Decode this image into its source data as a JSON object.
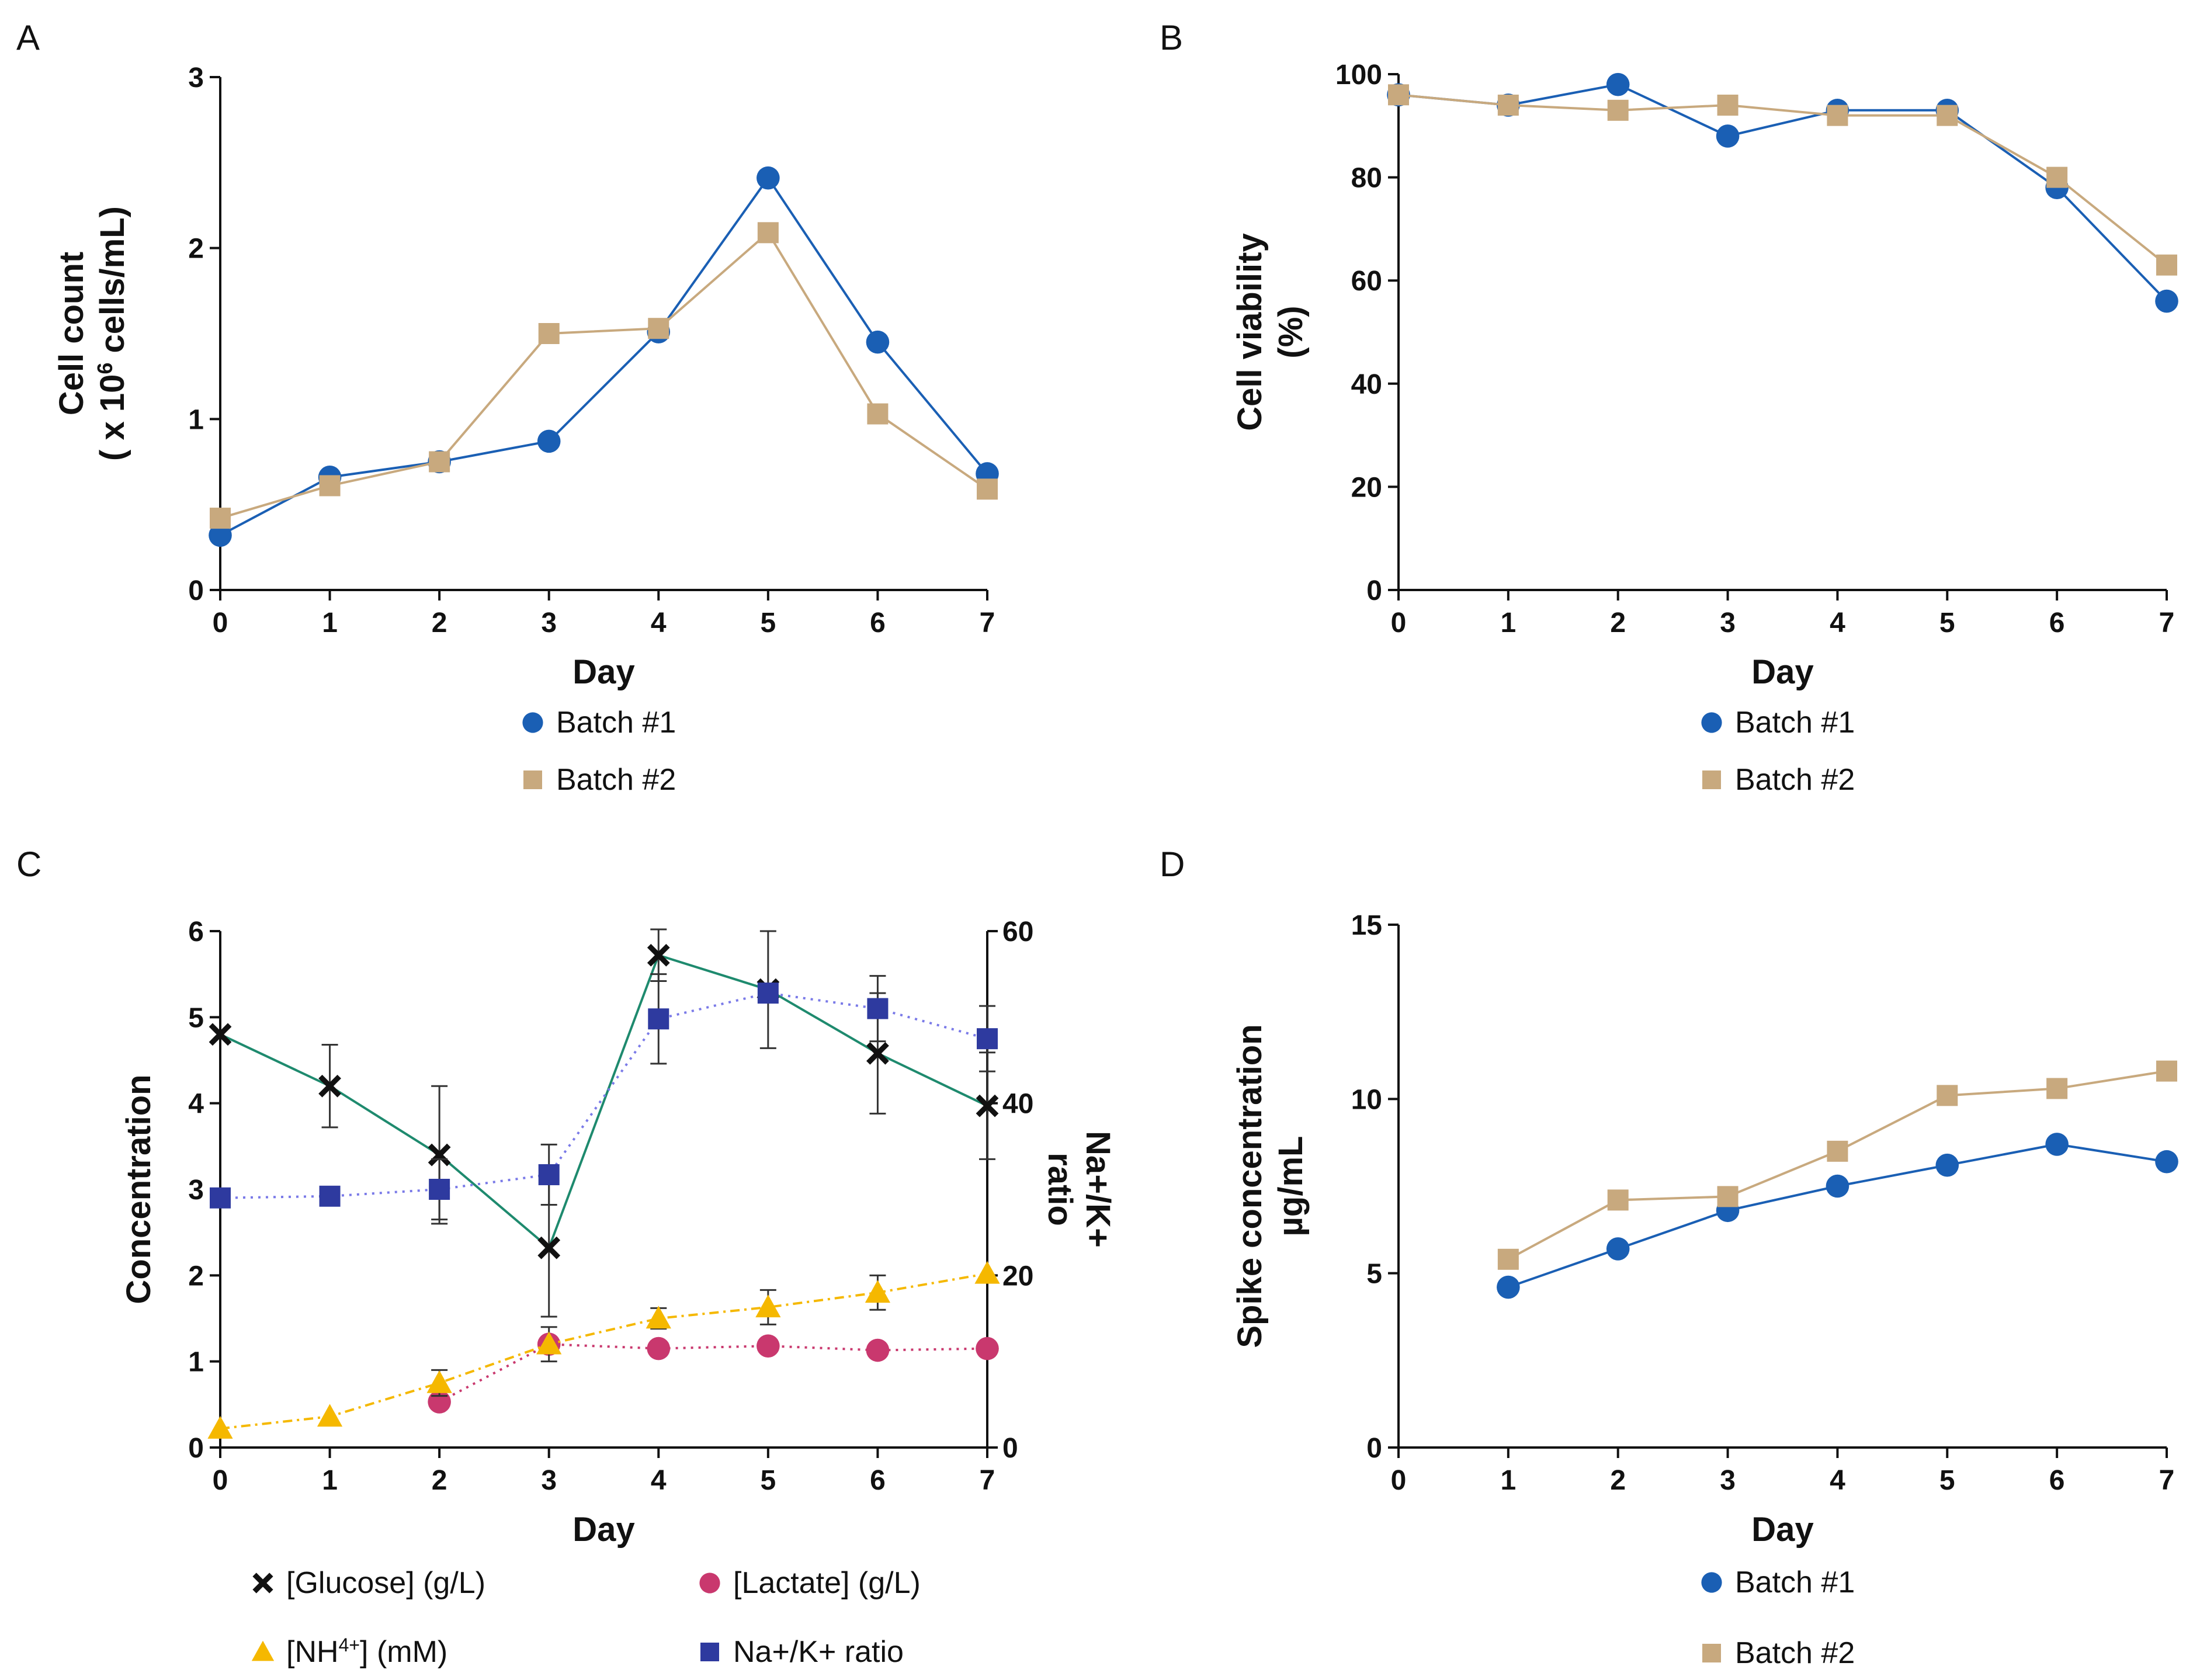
{
  "chart_data": [
    {
      "panel": "A",
      "type": "line",
      "xlabel": "Day",
      "ylabel_line1": "Cell count",
      "ylabel_line2_pre": "( x 10",
      "ylabel_line2_sup": "6",
      "ylabel_line2_post": " cells/mL)",
      "xlim": [
        0,
        7
      ],
      "ylim": [
        0,
        3
      ],
      "xticks": [
        0,
        1,
        2,
        3,
        4,
        5,
        6,
        7
      ],
      "yticks": [
        0,
        1,
        2,
        3
      ],
      "series": [
        {
          "name": "Batch #1",
          "marker": "circle",
          "color": "#1a5fb4",
          "x": [
            0,
            1,
            2,
            3,
            4,
            5,
            6,
            7
          ],
          "values": [
            0.32,
            0.66,
            0.75,
            0.87,
            1.51,
            2.41,
            1.45,
            0.68
          ]
        },
        {
          "name": "Batch #2",
          "marker": "square",
          "color": "#c8a97e",
          "x": [
            0,
            1,
            2,
            3,
            4,
            5,
            6,
            7
          ],
          "values": [
            0.42,
            0.61,
            0.75,
            1.5,
            1.53,
            2.09,
            1.03,
            0.59
          ]
        }
      ],
      "legend": [
        {
          "label": "Batch #1",
          "marker": "circle",
          "color": "#1a5fb4"
        },
        {
          "label": "Batch #2",
          "marker": "square",
          "color": "#c8a97e"
        }
      ]
    },
    {
      "panel": "B",
      "type": "line",
      "xlabel": "Day",
      "ylabel_line1": "Cell viability",
      "ylabel_line2": "(%)",
      "xlim": [
        0,
        7
      ],
      "ylim": [
        0,
        100
      ],
      "xticks": [
        0,
        1,
        2,
        3,
        4,
        5,
        6,
        7
      ],
      "yticks": [
        0,
        20,
        40,
        60,
        80,
        100
      ],
      "series": [
        {
          "name": "Batch #1",
          "marker": "circle",
          "color": "#1a5fb4",
          "x": [
            0,
            1,
            2,
            3,
            4,
            5,
            6,
            7
          ],
          "values": [
            96,
            94,
            98,
            88,
            93,
            93,
            78,
            56
          ]
        },
        {
          "name": "Batch #2",
          "marker": "square",
          "color": "#c8a97e",
          "x": [
            0,
            1,
            2,
            3,
            4,
            5,
            6,
            7
          ],
          "values": [
            96,
            94,
            93,
            94,
            92,
            92,
            80,
            63
          ]
        }
      ],
      "legend": [
        {
          "label": "Batch #1",
          "marker": "circle",
          "color": "#1a5fb4"
        },
        {
          "label": "Batch #2",
          "marker": "square",
          "color": "#c8a97e"
        }
      ]
    },
    {
      "panel": "C",
      "type": "line",
      "xlabel": "Day",
      "ylabel": "Concentration",
      "ylabel_right_line1": "Na+/K+",
      "ylabel_right_line2": "ratio",
      "xlim": [
        0,
        7
      ],
      "ylim": [
        0,
        6
      ],
      "ylim_right": [
        0,
        60
      ],
      "xticks": [
        0,
        1,
        2,
        3,
        4,
        5,
        6,
        7
      ],
      "yticks": [
        0,
        1,
        2,
        3,
        4,
        5,
        6
      ],
      "yticks_right": [
        0,
        20,
        40,
        60
      ],
      "series": [
        {
          "name": "[Glucose] (g/L)",
          "marker": "x",
          "color": "#111111",
          "line_color": "#1e8a6e",
          "dash": "solid",
          "axis": "left",
          "x": [
            0,
            1,
            2,
            3,
            4,
            5,
            6,
            7
          ],
          "values": [
            4.8,
            4.2,
            3.4,
            2.32,
            5.72,
            5.32,
            4.58,
            3.97
          ],
          "err": [
            0.0,
            0.48,
            0.8,
            0.8,
            0.3,
            0.68,
            0.7,
            0.62
          ]
        },
        {
          "name": "[Lactate] (g/L)",
          "marker": "circle",
          "color": "#c9386e",
          "line_color": "#c9386e",
          "dash": "dot",
          "axis": "left",
          "x": [
            2,
            3,
            4,
            5,
            6,
            7
          ],
          "values": [
            0.53,
            1.2,
            1.15,
            1.18,
            1.13,
            1.15
          ],
          "err": [
            0,
            0,
            0,
            0,
            0,
            0
          ]
        },
        {
          "name": "[NH4+] (mM)",
          "marker": "triangle",
          "color": "#f5b800",
          "line_color": "#f5b800",
          "dash": "dashdot",
          "axis": "left",
          "x": [
            0,
            1,
            2,
            3,
            4,
            5,
            6,
            7
          ],
          "values": [
            0.22,
            0.36,
            0.75,
            1.2,
            1.5,
            1.63,
            1.8,
            2.02
          ],
          "err": [
            0,
            0,
            0.15,
            0.2,
            0.12,
            0.2,
            0.2,
            0
          ]
        },
        {
          "name": "Na+/K+ ratio",
          "marker": "square",
          "color": "#2e3a9f",
          "line_color": "#7a7ae8",
          "dash": "dot",
          "axis": "right",
          "x": [
            0,
            1,
            2,
            3,
            4,
            5,
            6,
            7
          ],
          "values": [
            29,
            29.2,
            30,
            31.7,
            49.8,
            52.8,
            51,
            47.5
          ],
          "err": [
            0,
            0,
            3.5,
            3.5,
            5.2,
            0,
            3.8,
            3.8
          ]
        }
      ],
      "legend": [
        {
          "pre": "[Glucose] (g/L)",
          "sup": "",
          "post": "",
          "marker": "x",
          "color": "#111111"
        },
        {
          "pre": "[Lactate] (g/L)",
          "sup": "",
          "post": "",
          "marker": "circle",
          "color": "#c9386e"
        },
        {
          "pre": "[NH",
          "sup": "4+",
          "post": "] (mM)",
          "marker": "triangle",
          "color": "#f5b800"
        },
        {
          "pre": "Na+/K+ ratio",
          "sup": "",
          "post": "",
          "marker": "square",
          "color": "#2e3a9f"
        }
      ]
    },
    {
      "panel": "D",
      "type": "line",
      "xlabel": "Day",
      "ylabel_line1": "Spike concentration",
      "ylabel_line2": "µg/mL",
      "xlim": [
        0,
        7
      ],
      "ylim": [
        0,
        15
      ],
      "xticks": [
        0,
        1,
        2,
        3,
        4,
        5,
        6,
        7
      ],
      "yticks": [
        0,
        5,
        10,
        15
      ],
      "series": [
        {
          "name": "Batch #1",
          "marker": "circle",
          "color": "#1a5fb4",
          "x": [
            1,
            2,
            3,
            4,
            5,
            6,
            7
          ],
          "values": [
            4.6,
            5.7,
            6.8,
            7.5,
            8.1,
            8.7,
            8.2
          ]
        },
        {
          "name": "Batch #2",
          "marker": "square",
          "color": "#c8a97e",
          "x": [
            1,
            2,
            3,
            4,
            5,
            6,
            7
          ],
          "values": [
            5.4,
            7.1,
            7.2,
            8.5,
            10.1,
            10.3,
            10.8
          ]
        }
      ],
      "legend": [
        {
          "label": "Batch #1",
          "marker": "circle",
          "color": "#1a5fb4"
        },
        {
          "label": "Batch #2",
          "marker": "square",
          "color": "#c8a97e"
        }
      ]
    }
  ]
}
